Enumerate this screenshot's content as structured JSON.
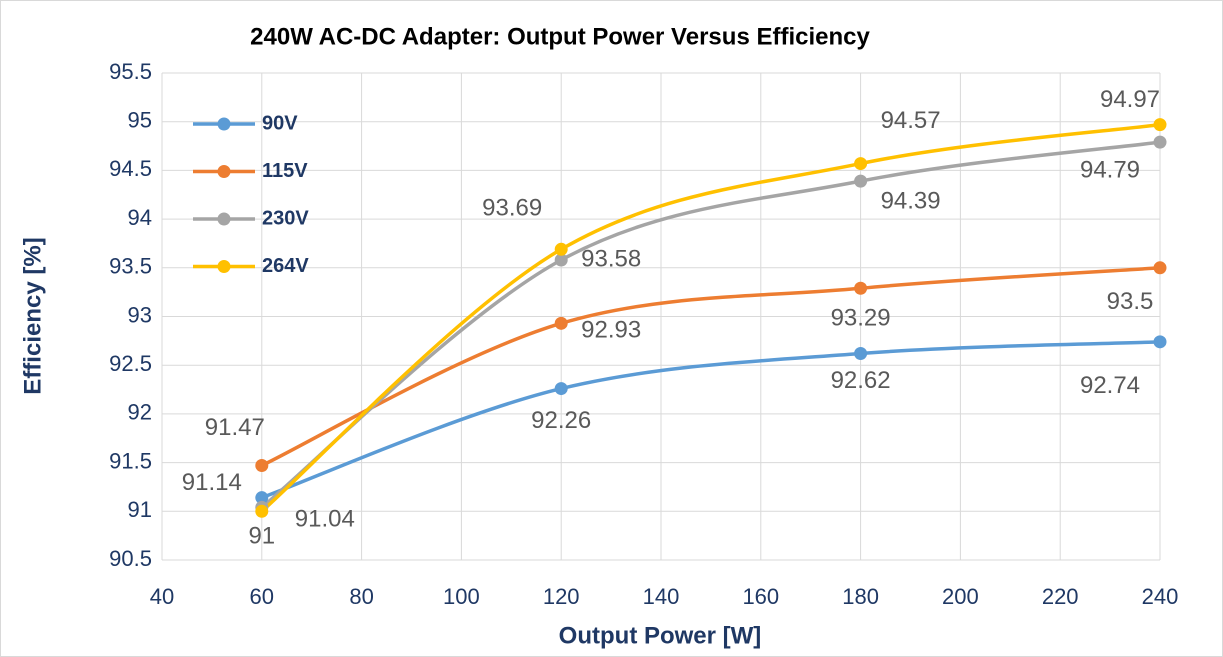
{
  "chart_data": {
    "type": "line",
    "title": "240W AC-DC Adapter: Output Power Versus Efficiency",
    "xlabel": "Output Power [W]",
    "ylabel": "Efficiency [%]",
    "x": [
      60,
      120,
      180,
      240
    ],
    "series": [
      {
        "name": "90V",
        "color": "#5b9bd5",
        "values": [
          91.14,
          92.26,
          92.62,
          92.74
        ]
      },
      {
        "name": "115V",
        "color": "#ed7d31",
        "values": [
          91.47,
          92.93,
          93.29,
          93.5
        ]
      },
      {
        "name": "230V",
        "color": "#a5a5a5",
        "values": [
          91.04,
          93.58,
          94.39,
          94.79
        ]
      },
      {
        "name": "264V",
        "color": "#ffc000",
        "values": [
          91,
          93.69,
          94.57,
          94.97
        ]
      }
    ],
    "xlim": [
      40,
      240
    ],
    "xticks": [
      40,
      60,
      80,
      100,
      120,
      140,
      160,
      180,
      200,
      220,
      240
    ],
    "ylim": [
      90.5,
      95.5
    ],
    "yticks": [
      90.5,
      91,
      91.5,
      92,
      92.5,
      93,
      93.5,
      94,
      94.5,
      95,
      95.5
    ],
    "grid": true,
    "smooth": true,
    "legend": "top-left"
  }
}
